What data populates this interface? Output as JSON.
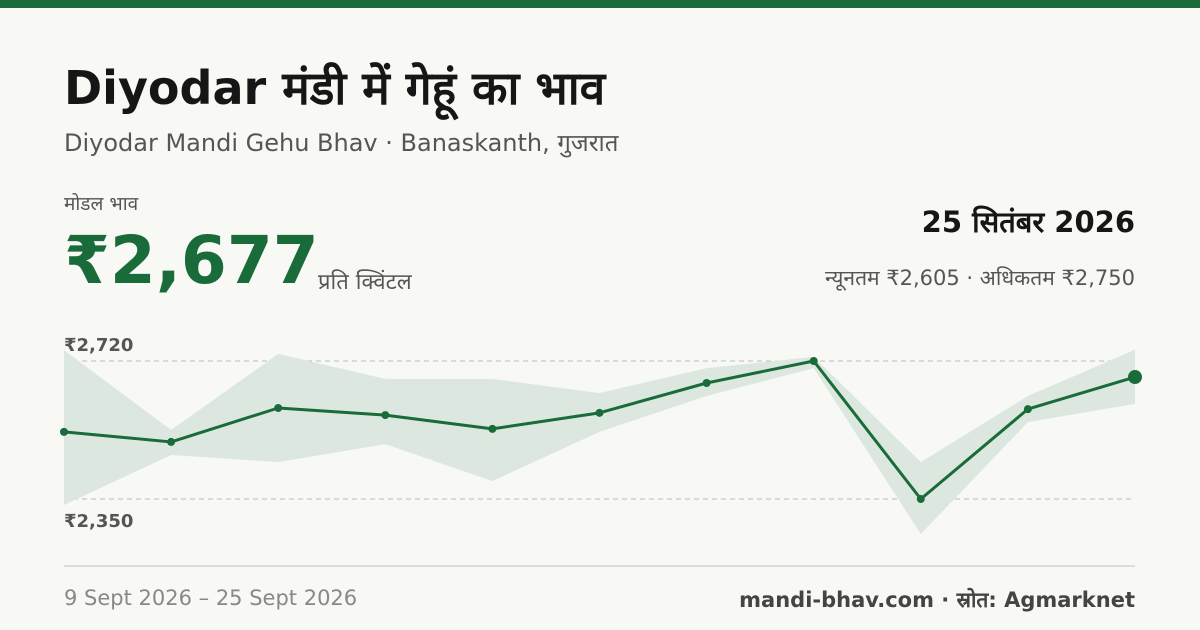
{
  "header": {
    "title": "Diyodar मंडी में गेहूं का भाव",
    "subtitle": "Diyodar Mandi Gehu Bhav · Banaskanth, गुजरात",
    "modal_label": "मोडल भाव",
    "modal_price": "₹2,677",
    "unit": "प्रति क्विंटल",
    "date": "25 सितंबर 2026",
    "range_text": "न्यूनतम ₹2,605 · अधिकतम ₹2,750"
  },
  "chart_data": {
    "type": "line",
    "categories": [
      null,
      null,
      null,
      null,
      null,
      null,
      null,
      null,
      null,
      null,
      null
    ],
    "series": [
      {
        "name": "मोडल भाव",
        "color": "#1a6b3a",
        "values": [
          2530,
          2503,
          2594,
          2575,
          2538,
          2581,
          2661,
          2720,
          2350,
          2591,
          2677
        ]
      }
    ],
    "band": {
      "color": "#dce8df",
      "low": [
        2334,
        2468,
        2449,
        2497,
        2398,
        2530,
        2626,
        2701,
        2256,
        2556,
        2605
      ],
      "high": [
        2749,
        2535,
        2739,
        2672,
        2672,
        2634,
        2701,
        2731,
        2449,
        2626,
        2750
      ]
    },
    "ylim": [
      2350,
      2720
    ],
    "yticks": [
      {
        "value": 2350,
        "label": "₹2,350"
      },
      {
        "value": 2720,
        "label": "₹2,720"
      }
    ],
    "grid": true
  },
  "footer": {
    "date_range": "9 Sept 2026 – 25 Sept 2026",
    "source": "mandi-bhav.com · स्रोत: Agmarknet"
  }
}
